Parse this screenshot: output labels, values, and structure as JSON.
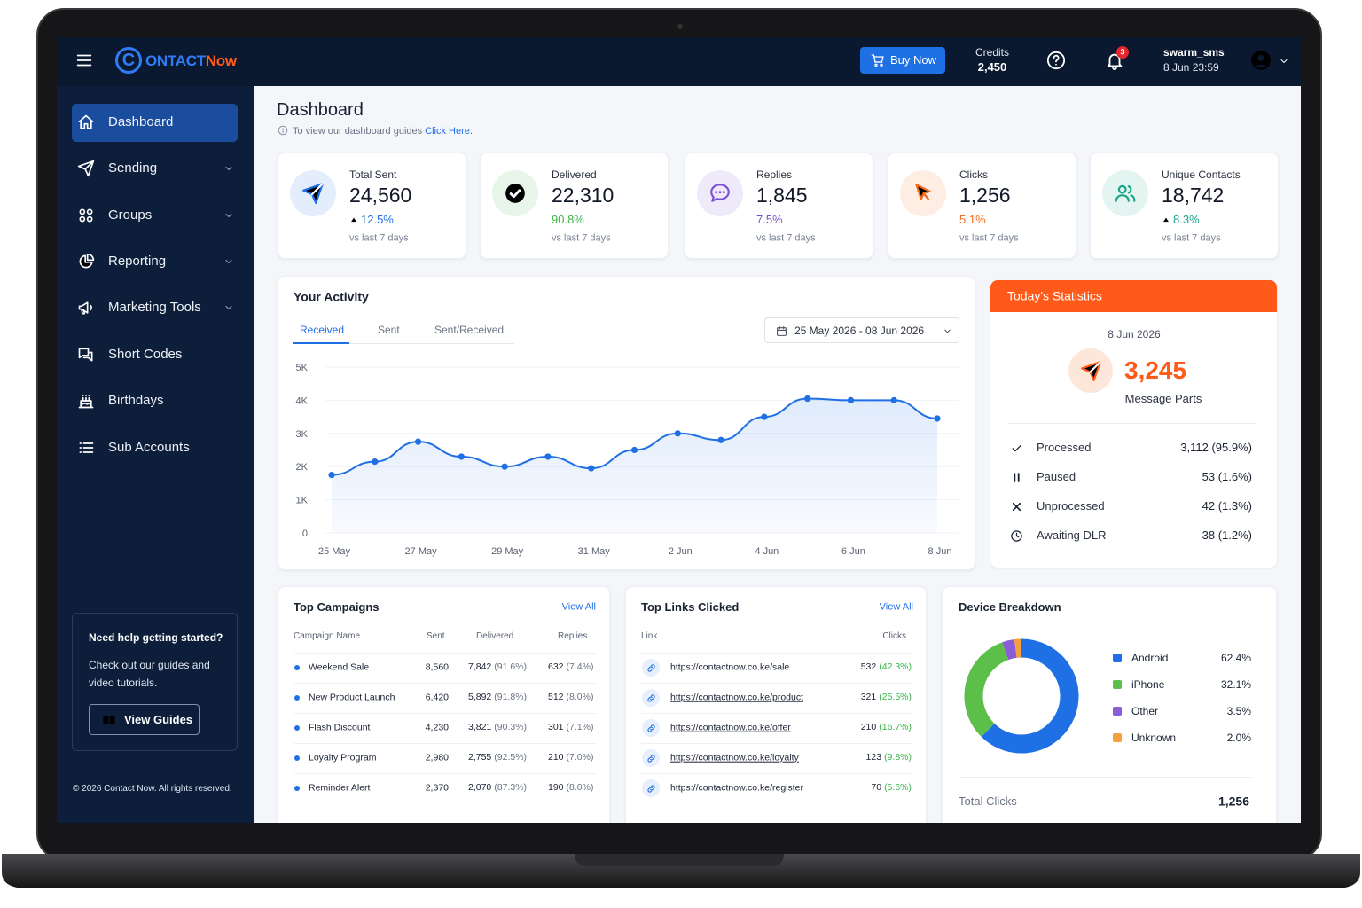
{
  "topbar": {
    "logo_mark": "C",
    "logo_name": "ONTACT",
    "logo_accent": "Now",
    "buy_now": "Buy Now",
    "credits_label": "Credits",
    "credits": "2,450",
    "notification_count": "3",
    "username": "swarm_sms",
    "datetime": "8 Jun 23:59"
  },
  "sidebar": {
    "items": [
      {
        "label": "Dashboard",
        "active": true
      },
      {
        "label": "Sending",
        "submenu": true
      },
      {
        "label": "Groups",
        "submenu": true
      },
      {
        "label": "Reporting",
        "submenu": true
      },
      {
        "label": "Marketing Tools",
        "submenu": true
      },
      {
        "label": "Short Codes"
      },
      {
        "label": "Birthdays"
      },
      {
        "label": "Sub Accounts"
      }
    ],
    "help": {
      "title": "Need help getting started?",
      "text": "Check out our guides and video tutorials.",
      "button": "View Guides"
    },
    "footer": "© 2026 Contact Now. All rights reserved."
  },
  "page": {
    "title": "Dashboard",
    "hint": "To view our dashboard guides",
    "hint_link": "Click Here."
  },
  "stats": [
    {
      "label": "Total Sent",
      "value": "24,560",
      "change": "12.5%",
      "trend": "up",
      "note": "vs last 7 days",
      "color": "#1f6fe5"
    },
    {
      "label": "Delivered",
      "value": "22,310",
      "change": "90.8%",
      "note": "vs last 7 days",
      "color": "#3bb54a"
    },
    {
      "label": "Replies",
      "value": "1,845",
      "change": "7.5%",
      "note": "vs last 7 days",
      "color": "#7b4fd6"
    },
    {
      "label": "Clicks",
      "value": "1,256",
      "change": "5.1%",
      "note": "vs last 7 days",
      "color": "#f26a1b"
    },
    {
      "label": "Unique Contacts",
      "value": "18,742",
      "change": "8.3%",
      "trend": "up",
      "note": "vs last 7 days",
      "color": "#1aa58a"
    }
  ],
  "activity": {
    "title": "Your Activity",
    "tabs": [
      "Received",
      "Sent",
      "Sent/Received"
    ],
    "active_tab": 0,
    "date_range": "25 May 2026 - 08 Jun 2026",
    "chart": {
      "type": "line",
      "categories": [
        "25 May",
        null,
        "27 May",
        null,
        "29 May",
        null,
        "31 May",
        null,
        "2 Jun",
        null,
        "4 Jun",
        null,
        "6 Jun",
        null,
        "8 Jun"
      ],
      "values": [
        1750,
        2150,
        2750,
        2300,
        2000,
        2300,
        1950,
        2500,
        3000,
        2800,
        3500,
        4050,
        4000,
        4000,
        3450
      ],
      "color": "#1f6fe5",
      "ylim": [
        0,
        5000
      ],
      "yticks": [
        0,
        {
          "value": 1000,
          "label": "1K"
        },
        {
          "value": 2000,
          "label": "2K"
        },
        {
          "value": 3000,
          "label": "3K"
        },
        {
          "value": 4000,
          "label": "4K"
        },
        {
          "value": 5000,
          "label": "5K"
        }
      ],
      "grid": true
    }
  },
  "today": {
    "title": "Today's Statistics",
    "date": "8 Jun 2026",
    "value": "3,245",
    "label": "Message Parts",
    "rows": [
      {
        "label": "Processed",
        "value": "3,112 (95.9%)"
      },
      {
        "label": "Paused",
        "value": "53 (1.6%)"
      },
      {
        "label": "Unprocessed",
        "value": "42 (1.3%)"
      },
      {
        "label": "Awaiting DLR",
        "value": "38 (1.2%)"
      }
    ]
  },
  "campaigns": {
    "title": "Top Campaigns",
    "view_all": "View All",
    "columns": [
      "Campaign Name",
      "Sent",
      "Delivered",
      "Replies"
    ],
    "rows": [
      {
        "name": "Weekend Sale",
        "sent": "8,560",
        "delivered": "7,842",
        "delivered_pct": "(91.6%)",
        "replies": "632",
        "replies_pct": "(7.4%)"
      },
      {
        "name": "New Product Launch",
        "sent": "6,420",
        "delivered": "5,892",
        "delivered_pct": "(91.8%)",
        "replies": "512",
        "replies_pct": "(8.0%)"
      },
      {
        "name": "Flash Discount",
        "sent": "4,230",
        "delivered": "3,821",
        "delivered_pct": "(90.3%)",
        "replies": "301",
        "replies_pct": "(7.1%)"
      },
      {
        "name": "Loyalty Program",
        "sent": "2,980",
        "delivered": "2,755",
        "delivered_pct": "(92.5%)",
        "replies": "210",
        "replies_pct": "(7.0%)"
      },
      {
        "name": "Reminder Alert",
        "sent": "2,370",
        "delivered": "2,070",
        "delivered_pct": "(87.3%)",
        "replies": "190",
        "replies_pct": "(8.0%)"
      }
    ]
  },
  "links": {
    "title": "Top Links Clicked",
    "view_all": "View All",
    "columns": [
      "Link",
      "Clicks"
    ],
    "rows": [
      {
        "url": "https://contactnow.co.ke/sale",
        "clicks": "532",
        "pct": "(42.3%)"
      },
      {
        "url": "https://contactnow.co.ke/product",
        "clicks": "321",
        "pct": "(25.5%)"
      },
      {
        "url": "https://contactnow.co.ke/offer",
        "clicks": "210",
        "pct": "(16.7%)"
      },
      {
        "url": "https://contactnow.co.ke/loyalty",
        "clicks": "123",
        "pct": "(9.8%)"
      },
      {
        "url": "https://contactnow.co.ke/register",
        "clicks": "70",
        "pct": "(5.6%)"
      }
    ]
  },
  "devices": {
    "title": "Device Breakdown",
    "chart": {
      "type": "donut",
      "categories": [
        "Android",
        "iPhone",
        "Other",
        "Unknown"
      ],
      "values": [
        62.4,
        32.1,
        3.5,
        2.0
      ],
      "value_labels": [
        "62.4%",
        "32.1%",
        "3.5%",
        "2.0%"
      ],
      "colors": [
        "#1f6fe5",
        "#5cbf4a",
        "#8a5cd6",
        "#f5a03c"
      ]
    },
    "total_label": "Total Clicks",
    "total": "1,256"
  }
}
